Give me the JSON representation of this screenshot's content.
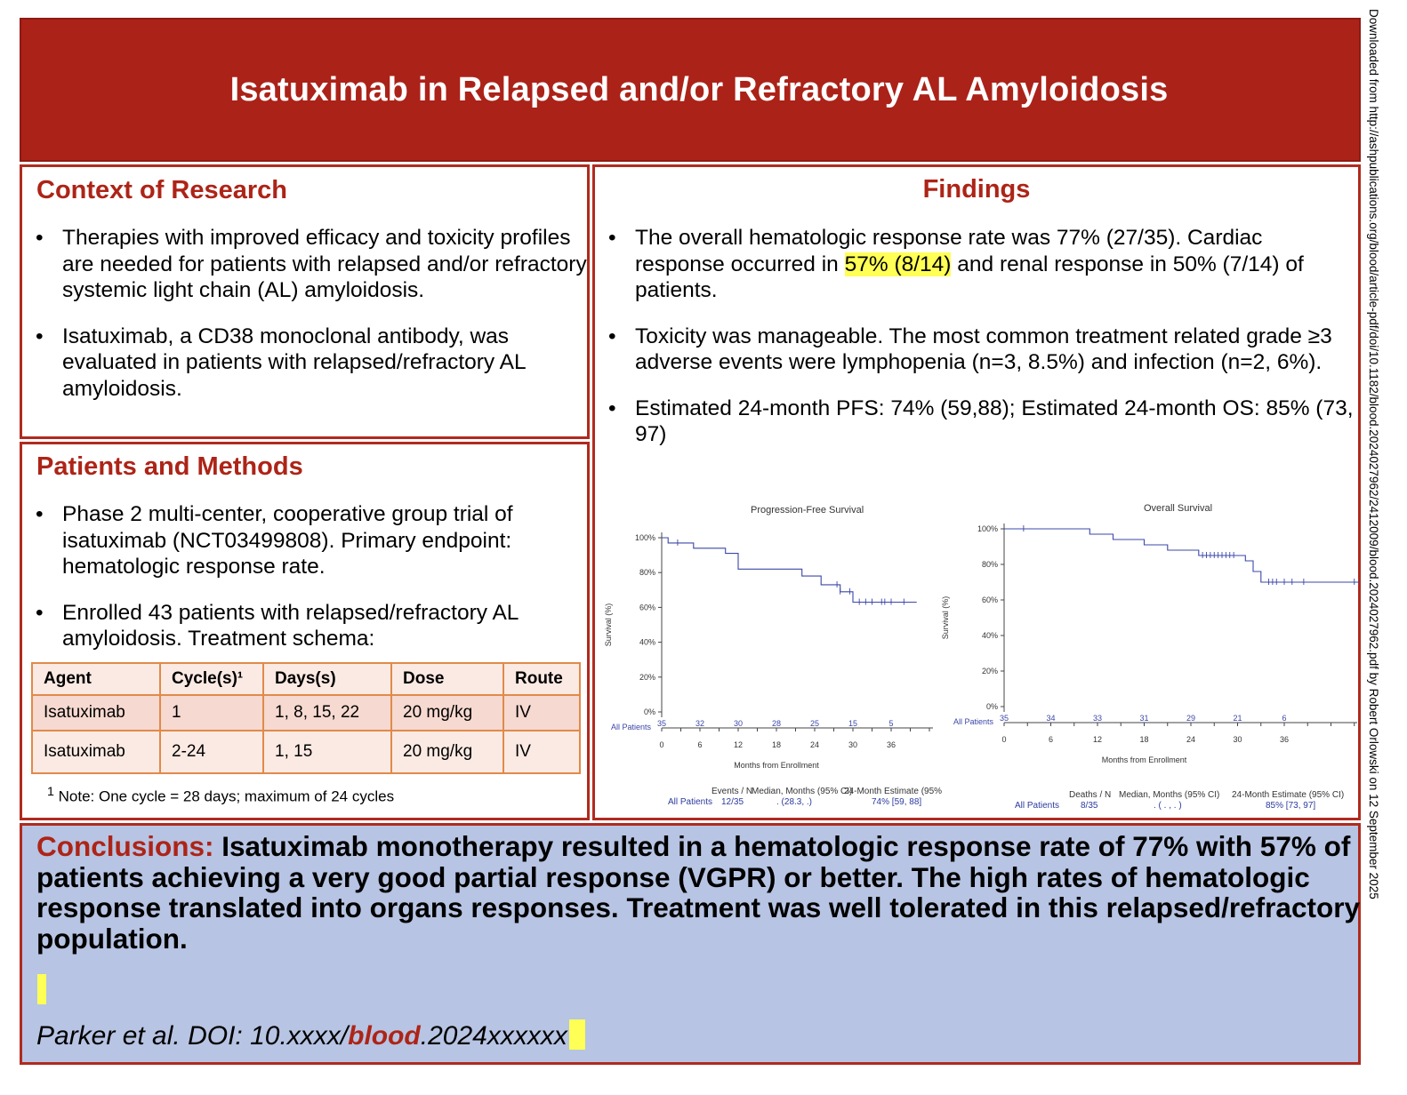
{
  "banner": {
    "title": "Isatuximab in Relapsed and/or Refractory AL Amyloidosis"
  },
  "context": {
    "title": "Context of Research",
    "bullets": [
      "Therapies with improved efficacy and toxicity profiles are needed for patients with relapsed and/or refractory systemic light chain (AL) amyloidosis.",
      "Isatuximab, a CD38 monoclonal antibody, was evaluated in patients with relapsed/refractory AL amyloidosis."
    ]
  },
  "methods": {
    "title": "Patients and Methods",
    "bullets": [
      "Phase 2 multi-center, cooperative group trial of isatuximab (NCT03499808). Primary endpoint: hematologic response rate.",
      "Enrolled 43 patients with relapsed/refractory AL amyloidosis. Treatment schema:"
    ],
    "table": {
      "headers": [
        "Agent",
        "Cycle(s)¹",
        "Days(s)",
        "Dose",
        "Route"
      ],
      "rows": [
        [
          "Isatuximab",
          "1",
          "1, 8, 15, 22",
          "20 mg/kg",
          "IV"
        ],
        [
          "Isatuximab",
          "2-24",
          "1, 15",
          "20 mg/kg",
          "IV"
        ]
      ],
      "note_sup": "1",
      "note": "Note: One cycle = 28 days; maximum of 24 cycles"
    }
  },
  "findings": {
    "title": "Findings",
    "b1_pre": "The overall hematologic response rate was 77% (27/35). Cardiac response occurred in ",
    "b1_hl": "57% (8/14)",
    "b1_post": " and renal response in 50% (7/14) of patients.",
    "b2": "Toxicity was manageable. The most common treatment related grade ≥3 adverse events were lymphopenia (n=3, 8.5%) and infection (n=2, 6%).",
    "b3": "Estimated 24-month PFS: 74% (59,88); Estimated 24-month OS: 85% (73, 97)"
  },
  "chart_data": [
    {
      "type": "line",
      "title": "Progression-Free Survival",
      "xlabel": "Months from Enrollment",
      "ylabel": "Survival (%)",
      "xlim": [
        0,
        40
      ],
      "ylim": [
        0,
        100
      ],
      "xticks": [
        0,
        6,
        12,
        18,
        24,
        30,
        36
      ],
      "yticks": [
        "0%",
        "20%",
        "40%",
        "60%",
        "80%",
        "100%"
      ],
      "series": [
        {
          "name": "All Patients",
          "x": [
            0,
            1,
            1,
            5,
            5,
            10,
            10,
            12,
            12,
            22,
            22,
            25,
            25,
            28,
            28,
            30,
            30,
            40
          ],
          "y": [
            100,
            100,
            97,
            97,
            94,
            94,
            91,
            91,
            82,
            82,
            78,
            78,
            73,
            73,
            69,
            69,
            63,
            63
          ],
          "censor_x": [
            2.5,
            27.5,
            28,
            29.5,
            31,
            32,
            33,
            34.5,
            35,
            36,
            38
          ]
        }
      ],
      "risk_table": {
        "label": "All Patients",
        "times": [
          0,
          6,
          12,
          18,
          24,
          30,
          36
        ],
        "counts": [
          "35",
          "32",
          "30",
          "28",
          "25",
          "15",
          "5"
        ]
      },
      "summary": {
        "headers": [
          "Events / N",
          "Median, Months (95% CI)",
          "24-Month Estimate (95%"
        ],
        "label": "All Patients",
        "values": [
          "12/35",
          ". (28.3, .)",
          "74% [59, 88]"
        ]
      }
    },
    {
      "type": "line",
      "title": "Overall Survival",
      "xlabel": "Months from Enrollment",
      "ylabel": "Survival (%)",
      "xlim": [
        0,
        46
      ],
      "ylim": [
        0,
        100
      ],
      "xticks": [
        0,
        6,
        12,
        18,
        24,
        30,
        36
      ],
      "yticks": [
        "0%",
        "20%",
        "40%",
        "60%",
        "80%",
        "100%"
      ],
      "series": [
        {
          "name": "All Patients",
          "x": [
            0,
            11,
            11,
            14,
            14,
            18,
            18,
            21,
            21,
            25,
            25,
            31,
            31,
            32,
            32,
            33,
            33,
            46
          ],
          "y": [
            100,
            100,
            97,
            97,
            94,
            94,
            91,
            91,
            88,
            88,
            85,
            85,
            82,
            82,
            76,
            76,
            70,
            70
          ],
          "censor_x": [
            2.5,
            25.5,
            26,
            26.5,
            27,
            27.5,
            28,
            28.5,
            29,
            29.5,
            34,
            34.5,
            35,
            36,
            37,
            38.5,
            45
          ]
        }
      ],
      "risk_table": {
        "label": "All Patients",
        "times": [
          0,
          6,
          12,
          18,
          24,
          30,
          36
        ],
        "counts": [
          "35",
          "34",
          "33",
          "31",
          "29",
          "21",
          "6"
        ]
      },
      "summary": {
        "headers": [
          "Deaths / N",
          "Median, Months (95% CI)",
          "24-Month Estimate (95% CI)"
        ],
        "label": "All Patients",
        "values": [
          "8/35",
          ". ( . , . )",
          "85% [73, 97]"
        ]
      }
    }
  ],
  "conclusions": {
    "label": "Conclusions:",
    "text": " Isatuximab monotherapy resulted in a hematologic response rate of 77% with 57% of patients achieving a very good partial response (VGPR) or better. The high rates of hematologic response translated into organs responses. Treatment was well tolerated in this relapsed/refractory population."
  },
  "citation": {
    "pre": "Parker et al. DOI: 10.xxxx/",
    "blood": "blood",
    "post": ".2024xxxxxx"
  },
  "sidebar_text": "Downloaded from http://ashpublications.org/blood/article-pdf/doi/10.1182/blood.2024027962/2412009/blood.2024027962.pdf by Robert Orlowski on 12 September 2025",
  "colors": {
    "banner": "#ab2218",
    "accent": "#ad2417",
    "conclusion_bg": "#b7c4e3",
    "highlight": "#ffff55",
    "table_border": "#e08a4a",
    "km_line": "#3b47a8"
  }
}
